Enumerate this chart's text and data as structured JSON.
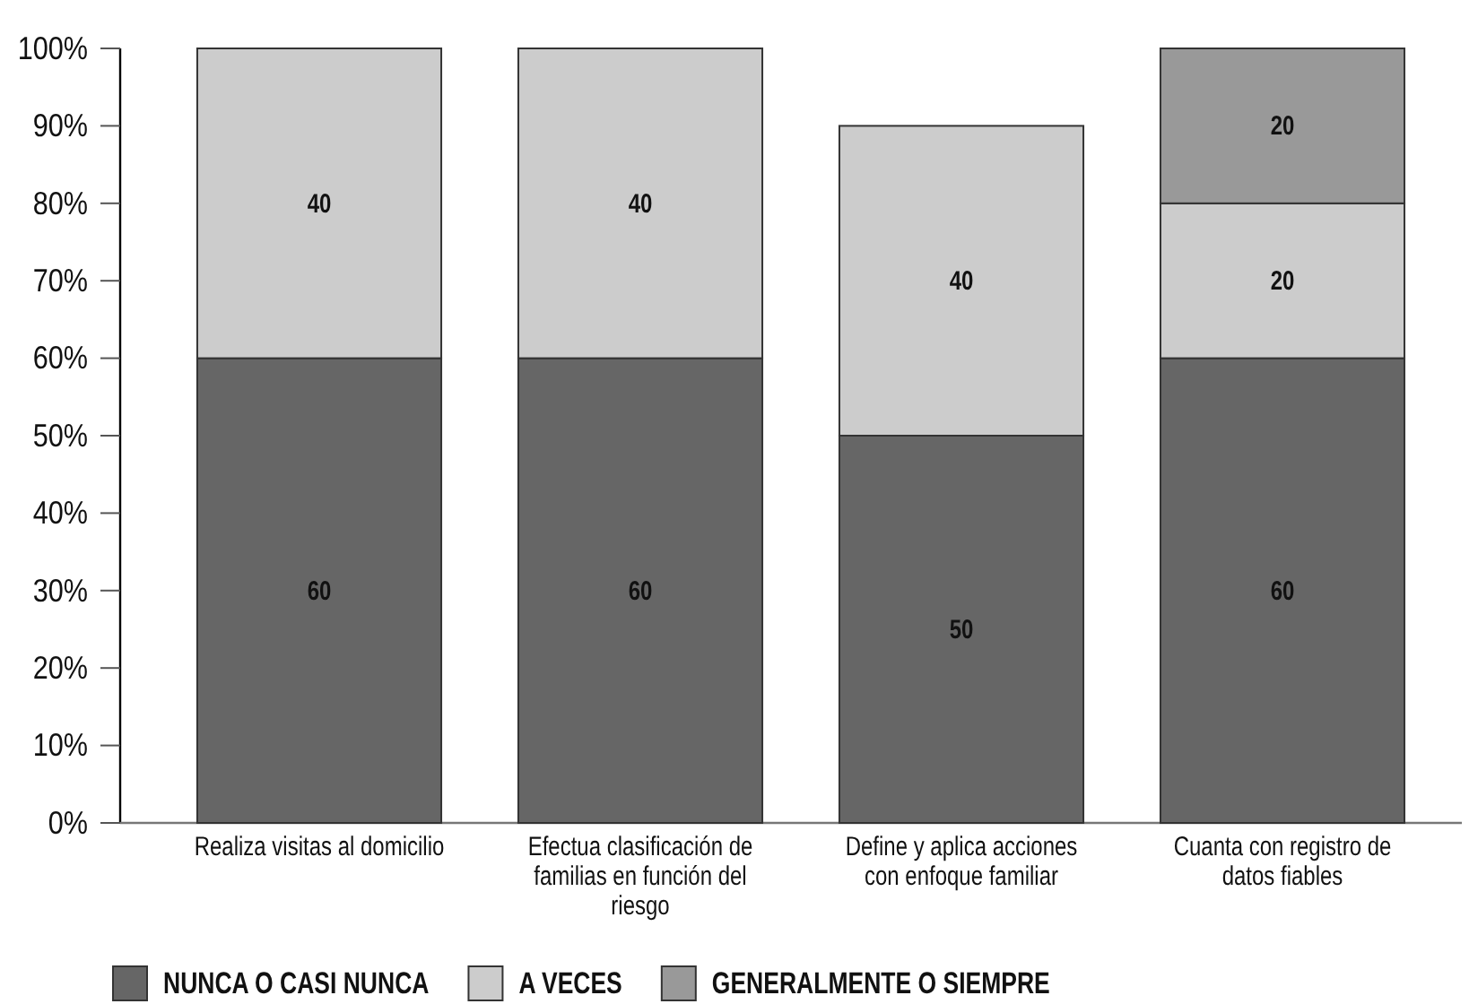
{
  "chart_data": {
    "type": "bar",
    "stacked": true,
    "categories": [
      "Realiza visitas al domicilio",
      "Efectua clasificación de familias en función del riesgo",
      "Define y aplica acciones con enfoque familiar",
      "Cuanta con registro de datos fiables"
    ],
    "series": [
      {
        "name": "NUNCA O CASI NUNCA",
        "color": "#666666",
        "values": [
          60,
          60,
          50,
          60
        ]
      },
      {
        "name": "A VECES",
        "color": "#cccccc",
        "values": [
          40,
          40,
          40,
          20
        ]
      },
      {
        "name": "GENERALMENTE O SIEMPRE",
        "color": "#999999",
        "values": [
          null,
          null,
          null,
          20
        ]
      }
    ],
    "data_labels": true,
    "ylim": [
      0,
      100
    ],
    "yticks": [
      {
        "value": 0,
        "label": "0%"
      },
      {
        "value": 10,
        "label": "10%"
      },
      {
        "value": 20,
        "label": "20%"
      },
      {
        "value": 30,
        "label": "30%"
      },
      {
        "value": 40,
        "label": "40%"
      },
      {
        "value": 50,
        "label": "50%"
      },
      {
        "value": 60,
        "label": "60%"
      },
      {
        "value": 70,
        "label": "70%"
      },
      {
        "value": 80,
        "label": "80%"
      },
      {
        "value": 90,
        "label": "90%"
      },
      {
        "value": 100,
        "label": "100%"
      }
    ],
    "legend": "bottom"
  }
}
